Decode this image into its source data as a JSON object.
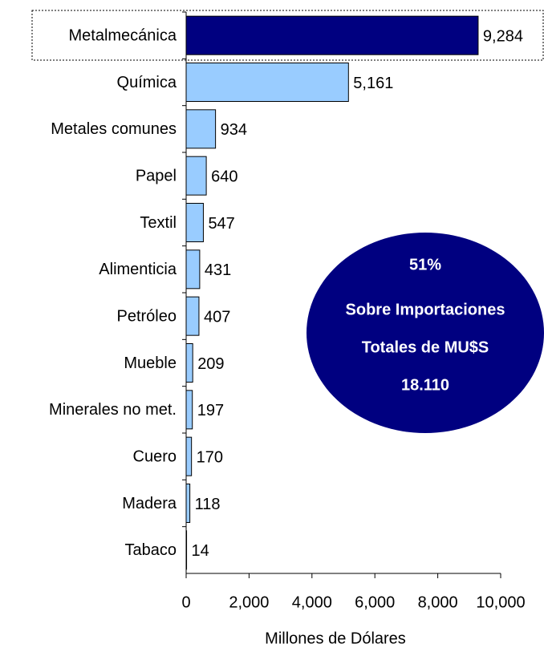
{
  "chart_data": {
    "type": "barh",
    "categories": [
      "Metalmecánica",
      "Química",
      "Metales comunes",
      "Papel",
      "Textil",
      "Alimenticia",
      "Petróleo",
      "Mueble",
      "Minerales no met.",
      "Cuero",
      "Madera",
      "Tabaco"
    ],
    "values": [
      9284,
      5161,
      934,
      640,
      547,
      431,
      407,
      209,
      197,
      170,
      118,
      14
    ],
    "value_labels": [
      "9,284",
      "5,161",
      "934",
      "640",
      "547",
      "431",
      "407",
      "209",
      "197",
      "170",
      "118",
      "14"
    ],
    "colors": [
      "#000080",
      "#99ccff",
      "#99ccff",
      "#99ccff",
      "#99ccff",
      "#99ccff",
      "#99ccff",
      "#99ccff",
      "#99ccff",
      "#99ccff",
      "#99ccff",
      "#99ccff"
    ],
    "xlim": [
      0,
      10000
    ],
    "xticks": [
      0,
      {
        "value": 2000,
        "label": "2,000"
      },
      {
        "value": 4000,
        "label": "4,000"
      },
      {
        "value": 6000,
        "label": "6,000"
      },
      {
        "value": 8000,
        "label": "8,000"
      },
      {
        "value": 10000,
        "label": "10,000"
      }
    ],
    "xlabel": "Millones de Dólares",
    "annotation": [
      "51%",
      "Sobre Importaciones",
      "Totales de MU$S",
      "18.110"
    ]
  }
}
